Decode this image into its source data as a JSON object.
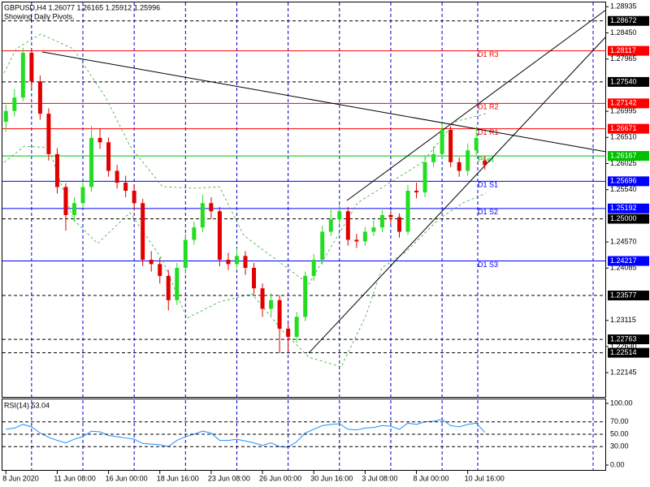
{
  "chart_data": {
    "type": "candlestick",
    "title": "GBPUSD,H4  1.26077 1.26165 1.25912 1.25996",
    "subtitle": "Showing Daily Pivots.",
    "categories": [
      "8 Jun 2020",
      null,
      null,
      null,
      null,
      null,
      "11 Jun 08:00",
      null,
      null,
      null,
      null,
      null,
      "16 Jun 00:00",
      null,
      null,
      null,
      null,
      null,
      "18 Jun 16:00",
      null,
      null,
      null,
      null,
      null,
      "23 Jun 08:00",
      null,
      null,
      null,
      null,
      null,
      "26 Jun 00:00",
      null,
      null,
      null,
      null,
      null,
      "30 Jun 16:00",
      null,
      null,
      null,
      null,
      null,
      "3 Jul 08:00",
      null,
      null,
      null,
      null,
      null,
      "8 Jul 00:00",
      null,
      null,
      null,
      null,
      null,
      "10 Jul 16:00",
      null,
      null
    ],
    "open": [
      1.268,
      1.27,
      1.2725,
      1.2808,
      1.2755,
      1.2695,
      1.262,
      1.2559,
      1.2507,
      1.2529,
      1.2559,
      1.265,
      1.2642,
      1.2589,
      1.2567,
      1.2552,
      1.2529,
      1.2424,
      1.2416,
      1.2394,
      1.2349,
      1.2409,
      1.2461,
      1.2484,
      1.2529,
      1.2514,
      1.2424,
      1.2416,
      1.2431,
      1.2409,
      1.2371,
      1.2333,
      1.2349,
      1.2296,
      1.2281,
      1.2318,
      1.2394,
      1.2424,
      1.2476,
      1.2499,
      1.2514,
      1.2461,
      1.2458,
      1.2476,
      1.2484,
      1.2507,
      1.2503,
      1.2476,
      1.2552,
      1.2549,
      1.2605,
      1.262,
      1.2665,
      1.2605,
      1.2589,
      1.2627,
      1.26077
    ],
    "high": [
      1.2712,
      1.2741,
      1.2817,
      1.2815,
      1.2766,
      1.2705,
      1.2631,
      1.2566,
      1.254,
      1.257,
      1.2672,
      1.2668,
      1.2651,
      1.26,
      1.258,
      1.2563,
      1.2537,
      1.244,
      1.2428,
      1.2405,
      1.2418,
      1.2472,
      1.2495,
      1.2545,
      1.254,
      1.2522,
      1.2437,
      1.2445,
      1.244,
      1.2418,
      1.238,
      1.2362,
      1.2358,
      1.2305,
      1.2327,
      1.2402,
      1.2435,
      1.2487,
      1.252,
      1.2526,
      1.2522,
      1.2472,
      1.2485,
      1.2497,
      1.2516,
      1.2515,
      1.251,
      1.2563,
      1.2567,
      1.2616,
      1.2634,
      1.2678,
      1.2672,
      1.2614,
      1.264,
      1.2672,
      1.26165
    ],
    "low": [
      1.2662,
      1.269,
      1.2718,
      1.2742,
      1.2684,
      1.2608,
      1.2547,
      1.2478,
      1.2495,
      1.252,
      1.255,
      1.263,
      1.2578,
      1.2556,
      1.254,
      1.2515,
      1.2412,
      1.2402,
      1.238,
      1.233,
      1.234,
      1.2398,
      1.2452,
      1.2475,
      1.25,
      1.2412,
      1.2405,
      1.2408,
      1.2396,
      1.236,
      1.2318,
      1.232,
      1.2251,
      1.2254,
      1.227,
      1.231,
      1.2385,
      1.2415,
      1.2468,
      1.2488,
      1.245,
      1.2446,
      1.245,
      1.2468,
      1.2475,
      1.249,
      1.2465,
      1.247,
      1.2538,
      1.254,
      1.2596,
      1.2612,
      1.2596,
      1.2578,
      1.258,
      1.2618,
      1.25912
    ],
    "close": [
      1.27,
      1.2725,
      1.2808,
      1.2755,
      1.2695,
      1.262,
      1.2559,
      1.2507,
      1.2529,
      1.2559,
      1.265,
      1.2642,
      1.2589,
      1.2567,
      1.2552,
      1.2529,
      1.2424,
      1.2416,
      1.2394,
      1.2349,
      1.2409,
      1.2461,
      1.2484,
      1.2529,
      1.2514,
      1.2424,
      1.2416,
      1.2431,
      1.2409,
      1.2371,
      1.2333,
      1.2349,
      1.2296,
      1.2281,
      1.2318,
      1.2394,
      1.2424,
      1.2476,
      1.2499,
      1.2514,
      1.2461,
      1.2458,
      1.2476,
      1.2484,
      1.2507,
      1.2503,
      1.2476,
      1.2552,
      1.2549,
      1.2605,
      1.262,
      1.2665,
      1.2605,
      1.2589,
      1.2627,
      1.265,
      1.25996
    ],
    "up_color": "#22dd22",
    "down_color": "#e00000",
    "grid": true,
    "ylim": [
      1.2168,
      1.2903
    ],
    "yticks": [
      {
        "value": 1.28935,
        "label": "1.28935"
      },
      {
        "value": 1.2845,
        "label": "1.28450"
      },
      {
        "value": 1.27965,
        "label": "1.27965"
      },
      {
        "value": 1.26995,
        "label": "1.26995"
      },
      {
        "value": 1.2651,
        "label": "1.26510"
      },
      {
        "value": 1.26025,
        "label": "1.26025"
      },
      {
        "value": 1.2554,
        "label": "1.25540"
      },
      {
        "value": 1.2457,
        "label": "1.24570"
      },
      {
        "value": 1.24085,
        "label": "1.24085"
      },
      {
        "value": 1.23115,
        "label": "1.23115"
      },
      {
        "value": 1.2263,
        "label": "1.22630"
      },
      {
        "value": 1.22145,
        "label": "1.22145"
      }
    ],
    "levels": [
      {
        "value": 1.28672,
        "label": "1.28672",
        "color": "#000000",
        "dashed": true
      },
      {
        "value": 1.28117,
        "label": "1.28117",
        "color": "#ff0000",
        "dashed": false,
        "tag": "D1 R3"
      },
      {
        "value": 1.2754,
        "label": "1.27540",
        "color": "#000000",
        "dashed": true
      },
      {
        "value": 1.27142,
        "label": "1.27142",
        "color": "#ff0000",
        "dashed": false,
        "tag": "D1 R2"
      },
      {
        "value": 1.26671,
        "label": "1.26671",
        "color": "#ff0000",
        "dashed": false,
        "tag": "D1 R1"
      },
      {
        "value": 1.26167,
        "label": "1.26167",
        "color": "#00c000",
        "dashed": false,
        "tag": "Pivot"
      },
      {
        "value": 1.25696,
        "label": "1.25696",
        "color": "#0000ff",
        "dashed": false,
        "tag": "D1 S1"
      },
      {
        "value": 1.25192,
        "label": "1.25192",
        "color": "#0000ff",
        "dashed": false,
        "tag": "D1 S2"
      },
      {
        "value": 1.25,
        "label": "1.25000",
        "color": "#000000",
        "dashed": true
      },
      {
        "value": 1.24217,
        "label": "1.24217",
        "color": "#0000ff",
        "dashed": false,
        "tag": "D1 S3"
      },
      {
        "value": 1.23577,
        "label": "1.23577",
        "color": "#000000",
        "dashed": true
      },
      {
        "value": 1.22763,
        "label": "1.22763",
        "color": "#000000",
        "dashed": true
      },
      {
        "value": 1.22514,
        "label": "1.22514",
        "color": "#000000",
        "dashed": true
      }
    ],
    "indicator": {
      "type": "line",
      "title": "RSI(14) 53.04",
      "color": "#1e90ff",
      "ylim": [
        0,
        100
      ],
      "yticks": [
        {
          "value": 100,
          "label": "100.00"
        },
        {
          "value": 70,
          "label": "70.00"
        },
        {
          "value": 50,
          "label": "50.00"
        },
        {
          "value": 30,
          "label": "30.00"
        },
        {
          "value": 0,
          "label": "0.00"
        }
      ],
      "values": [
        58,
        60,
        66,
        62,
        52,
        45,
        40,
        36,
        42,
        46,
        55,
        54,
        48,
        46,
        44,
        42,
        35,
        34,
        33,
        30,
        40,
        46,
        50,
        55,
        52,
        40,
        40,
        42,
        39,
        36,
        32,
        36,
        30,
        29,
        38,
        52,
        58,
        64,
        66,
        67,
        58,
        57,
        60,
        61,
        64,
        63,
        58,
        68,
        66,
        70,
        71,
        74,
        64,
        62,
        66,
        68,
        53.04
      ]
    }
  }
}
